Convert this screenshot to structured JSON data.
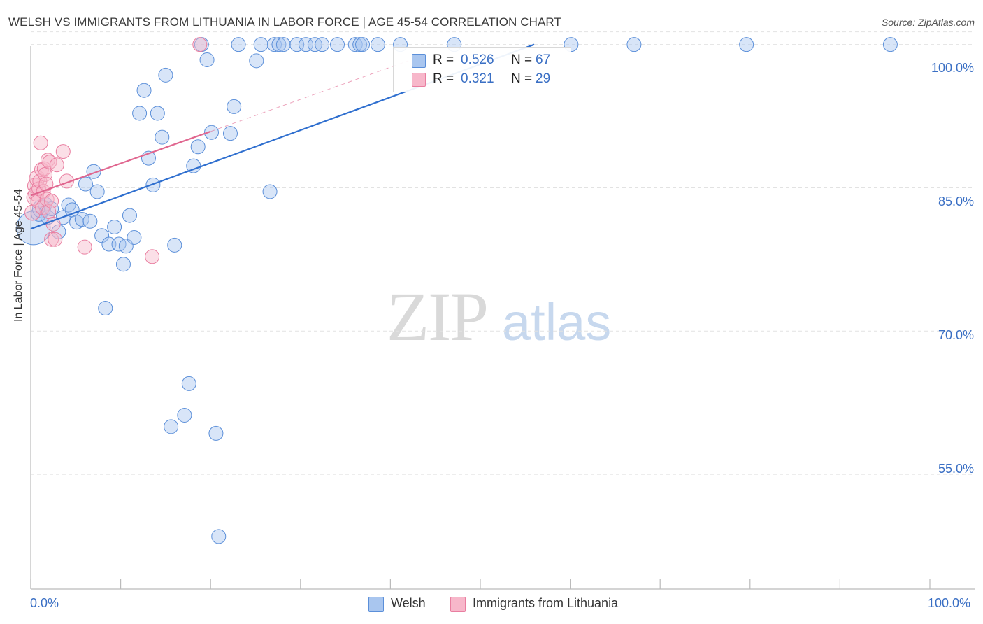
{
  "title": "WELSH VS IMMIGRANTS FROM LITHUANIA IN LABOR FORCE | AGE 45-54 CORRELATION CHART",
  "source": "Source: ZipAtlas.com",
  "watermark": {
    "zip": "ZIP",
    "atlas": "atlas"
  },
  "legend": {
    "rows": [
      {
        "r_label": "R =",
        "r_value": "0.526",
        "n_label": "N =",
        "n_value": "67",
        "color": "#a9c6ef"
      },
      {
        "r_label": "R =",
        "r_value": "0.321",
        "n_label": "N =",
        "n_value": "29",
        "color": "#f7b7ca"
      }
    ]
  },
  "bottom_legend": {
    "welsh": "Welsh",
    "lithuania": "Immigrants from Lithuania"
  },
  "chart_data": {
    "type": "scatter",
    "title": "WELSH VS IMMIGRANTS FROM LITHUANIA IN LABOR FORCE | AGE 45-54 CORRELATION CHART",
    "xlabel": "",
    "ylabel": "In Labor Force | Age 45-54",
    "xlim": [
      0,
      100
    ],
    "ylim": [
      43,
      101
    ],
    "x_tick_labels": [
      "0.0%",
      "100.0%"
    ],
    "y_ticks": [
      55,
      70,
      85,
      100
    ],
    "y_tick_labels": [
      "55.0%",
      "70.0%",
      "85.0%",
      "100.0%"
    ],
    "grid": true,
    "legend_position": "top-center",
    "colors": {
      "welsh": "#5b8fd9",
      "welsh_fill": "#a9c6ef",
      "welsh_line": "#2f6fcf",
      "lithuania": "#e97ea0",
      "lithuania_fill": "#f7b7ca",
      "lithuania_line": "#e0668f"
    },
    "series": [
      {
        "name": "Welsh",
        "r": 0.526,
        "n": 67,
        "trend": {
          "x": [
            0,
            56
          ],
          "y": [
            80.7,
            100.0
          ],
          "style": "solid"
        },
        "points": [
          {
            "x": 0.3,
            "y": 80.8,
            "s": 24
          },
          {
            "x": 0.9,
            "y": 82.3,
            "s": 11
          },
          {
            "x": 1.2,
            "y": 82.8,
            "s": 13
          },
          {
            "x": 1.6,
            "y": 83.3,
            "s": 10
          },
          {
            "x": 1.9,
            "y": 81.9,
            "s": 10
          },
          {
            "x": 2.3,
            "y": 82.8,
            "s": 10
          },
          {
            "x": 3.1,
            "y": 80.4,
            "s": 10
          },
          {
            "x": 3.6,
            "y": 81.9,
            "s": 10
          },
          {
            "x": 4.2,
            "y": 83.2,
            "s": 10
          },
          {
            "x": 4.6,
            "y": 82.7,
            "s": 10
          },
          {
            "x": 5.1,
            "y": 81.4,
            "s": 10
          },
          {
            "x": 5.7,
            "y": 81.7,
            "s": 10
          },
          {
            "x": 6.1,
            "y": 85.4,
            "s": 10
          },
          {
            "x": 6.6,
            "y": 81.5,
            "s": 10
          },
          {
            "x": 7.0,
            "y": 86.7,
            "s": 10
          },
          {
            "x": 7.4,
            "y": 84.6,
            "s": 10
          },
          {
            "x": 7.9,
            "y": 80.0,
            "s": 10
          },
          {
            "x": 8.3,
            "y": 72.4,
            "s": 10
          },
          {
            "x": 8.7,
            "y": 79.1,
            "s": 10
          },
          {
            "x": 9.3,
            "y": 80.9,
            "s": 10
          },
          {
            "x": 9.8,
            "y": 79.1,
            "s": 10
          },
          {
            "x": 10.3,
            "y": 77.0,
            "s": 10
          },
          {
            "x": 10.6,
            "y": 78.9,
            "s": 10
          },
          {
            "x": 11.0,
            "y": 82.1,
            "s": 10
          },
          {
            "x": 11.5,
            "y": 79.8,
            "s": 10
          },
          {
            "x": 12.1,
            "y": 92.8,
            "s": 10
          },
          {
            "x": 12.6,
            "y": 95.2,
            "s": 10
          },
          {
            "x": 13.1,
            "y": 88.1,
            "s": 10
          },
          {
            "x": 13.6,
            "y": 85.3,
            "s": 10
          },
          {
            "x": 14.1,
            "y": 92.8,
            "s": 10
          },
          {
            "x": 14.6,
            "y": 90.3,
            "s": 10
          },
          {
            "x": 15.0,
            "y": 96.8,
            "s": 10
          },
          {
            "x": 15.6,
            "y": 60.0,
            "s": 10
          },
          {
            "x": 16.0,
            "y": 79.0,
            "s": 10
          },
          {
            "x": 17.1,
            "y": 61.2,
            "s": 10
          },
          {
            "x": 17.6,
            "y": 64.5,
            "s": 10
          },
          {
            "x": 18.1,
            "y": 87.3,
            "s": 10
          },
          {
            "x": 18.6,
            "y": 89.3,
            "s": 10
          },
          {
            "x": 19.0,
            "y": 100.0,
            "s": 10
          },
          {
            "x": 19.6,
            "y": 98.4,
            "s": 10
          },
          {
            "x": 20.1,
            "y": 90.8,
            "s": 10
          },
          {
            "x": 20.6,
            "y": 59.3,
            "s": 10
          },
          {
            "x": 20.9,
            "y": 48.5,
            "s": 10
          },
          {
            "x": 22.2,
            "y": 90.7,
            "s": 10
          },
          {
            "x": 22.6,
            "y": 93.5,
            "s": 10
          },
          {
            "x": 23.1,
            "y": 100.0,
            "s": 10
          },
          {
            "x": 25.1,
            "y": 98.3,
            "s": 10
          },
          {
            "x": 25.6,
            "y": 100.0,
            "s": 10
          },
          {
            "x": 26.6,
            "y": 84.6,
            "s": 10
          },
          {
            "x": 27.1,
            "y": 100.0,
            "s": 10
          },
          {
            "x": 27.6,
            "y": 100.0,
            "s": 10
          },
          {
            "x": 28.1,
            "y": 100.0,
            "s": 10
          },
          {
            "x": 29.6,
            "y": 100.0,
            "s": 10
          },
          {
            "x": 30.6,
            "y": 100.0,
            "s": 10
          },
          {
            "x": 31.6,
            "y": 100.0,
            "s": 10
          },
          {
            "x": 32.4,
            "y": 100.0,
            "s": 10
          },
          {
            "x": 34.1,
            "y": 100.0,
            "s": 10
          },
          {
            "x": 36.1,
            "y": 100.0,
            "s": 10
          },
          {
            "x": 36.6,
            "y": 100.0,
            "s": 10
          },
          {
            "x": 36.9,
            "y": 100.0,
            "s": 10
          },
          {
            "x": 38.6,
            "y": 100.0,
            "s": 10
          },
          {
            "x": 41.1,
            "y": 100.0,
            "s": 10
          },
          {
            "x": 47.1,
            "y": 100.0,
            "s": 10
          },
          {
            "x": 60.1,
            "y": 100.0,
            "s": 10
          },
          {
            "x": 67.1,
            "y": 100.0,
            "s": 10
          },
          {
            "x": 79.6,
            "y": 100.0,
            "s": 10
          },
          {
            "x": 95.6,
            "y": 100.0,
            "s": 10
          }
        ]
      },
      {
        "name": "Immigrants from Lithuania",
        "r": 0.321,
        "n": 29,
        "trend": {
          "x": [
            0,
            20
          ],
          "y": [
            84.2,
            90.9
          ],
          "style": "solid",
          "dashed_extension_to": [
            42,
            98.3
          ]
        },
        "points": [
          {
            "x": 0.2,
            "y": 82.4,
            "s": 11
          },
          {
            "x": 0.4,
            "y": 84.0,
            "s": 11
          },
          {
            "x": 0.5,
            "y": 85.2,
            "s": 11
          },
          {
            "x": 0.6,
            "y": 84.4,
            "s": 11
          },
          {
            "x": 0.7,
            "y": 86.0,
            "s": 11
          },
          {
            "x": 0.8,
            "y": 83.6,
            "s": 10
          },
          {
            "x": 0.9,
            "y": 84.9,
            "s": 10
          },
          {
            "x": 1.0,
            "y": 85.7,
            "s": 10
          },
          {
            "x": 1.1,
            "y": 89.7,
            "s": 10
          },
          {
            "x": 1.2,
            "y": 86.9,
            "s": 10
          },
          {
            "x": 1.3,
            "y": 82.9,
            "s": 10
          },
          {
            "x": 1.4,
            "y": 84.6,
            "s": 10
          },
          {
            "x": 1.5,
            "y": 87.0,
            "s": 10
          },
          {
            "x": 1.6,
            "y": 86.4,
            "s": 10
          },
          {
            "x": 1.7,
            "y": 85.4,
            "s": 10
          },
          {
            "x": 1.8,
            "y": 83.8,
            "s": 10
          },
          {
            "x": 1.9,
            "y": 87.9,
            "s": 10
          },
          {
            "x": 2.0,
            "y": 82.5,
            "s": 10
          },
          {
            "x": 2.1,
            "y": 87.7,
            "s": 10
          },
          {
            "x": 2.3,
            "y": 79.6,
            "s": 10
          },
          {
            "x": 2.5,
            "y": 81.2,
            "s": 10
          },
          {
            "x": 2.7,
            "y": 79.6,
            "s": 10
          },
          {
            "x": 2.3,
            "y": 83.6,
            "s": 10
          },
          {
            "x": 2.9,
            "y": 87.4,
            "s": 10
          },
          {
            "x": 3.6,
            "y": 88.8,
            "s": 10
          },
          {
            "x": 4.0,
            "y": 85.7,
            "s": 10
          },
          {
            "x": 6.0,
            "y": 78.8,
            "s": 10
          },
          {
            "x": 13.5,
            "y": 77.8,
            "s": 10
          },
          {
            "x": 18.8,
            "y": 100.0,
            "s": 10
          }
        ]
      }
    ]
  }
}
